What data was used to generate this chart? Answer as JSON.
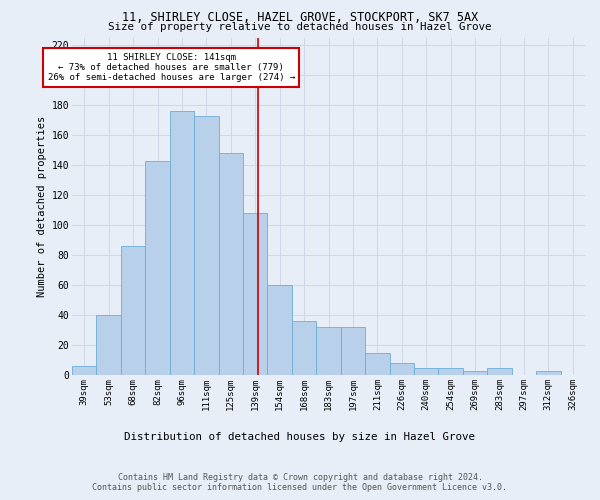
{
  "title1": "11, SHIRLEY CLOSE, HAZEL GROVE, STOCKPORT, SK7 5AX",
  "title2": "Size of property relative to detached houses in Hazel Grove",
  "xlabel": "Distribution of detached houses by size in Hazel Grove",
  "ylabel": "Number of detached properties",
  "footer1": "Contains HM Land Registry data © Crown copyright and database right 2024.",
  "footer2": "Contains public sector information licensed under the Open Government Licence v3.0.",
  "categories": [
    "39sqm",
    "53sqm",
    "68sqm",
    "82sqm",
    "96sqm",
    "111sqm",
    "125sqm",
    "139sqm",
    "154sqm",
    "168sqm",
    "183sqm",
    "197sqm",
    "211sqm",
    "226sqm",
    "240sqm",
    "254sqm",
    "269sqm",
    "283sqm",
    "297sqm",
    "312sqm",
    "326sqm"
  ],
  "values": [
    6,
    40,
    86,
    143,
    176,
    173,
    148,
    108,
    60,
    36,
    32,
    32,
    15,
    8,
    5,
    5,
    3,
    5,
    0,
    3,
    0
  ],
  "bar_color": "#b8d0ea",
  "bar_edge_color": "#6aaed6",
  "annotation_text1": "11 SHIRLEY CLOSE: 141sqm",
  "annotation_text2": "← 73% of detached houses are smaller (779)",
  "annotation_text3": "26% of semi-detached houses are larger (274) →",
  "annotation_box_color": "#ffffff",
  "annotation_box_edge": "#cc0000",
  "vline_color": "#cc0000",
  "ylim": [
    0,
    225
  ],
  "yticks": [
    0,
    20,
    40,
    60,
    80,
    100,
    120,
    140,
    160,
    180,
    200,
    220
  ],
  "grid_color": "#d0d8e8",
  "bg_color": "#e8eef8",
  "plot_bg_color": "#e8eef8"
}
